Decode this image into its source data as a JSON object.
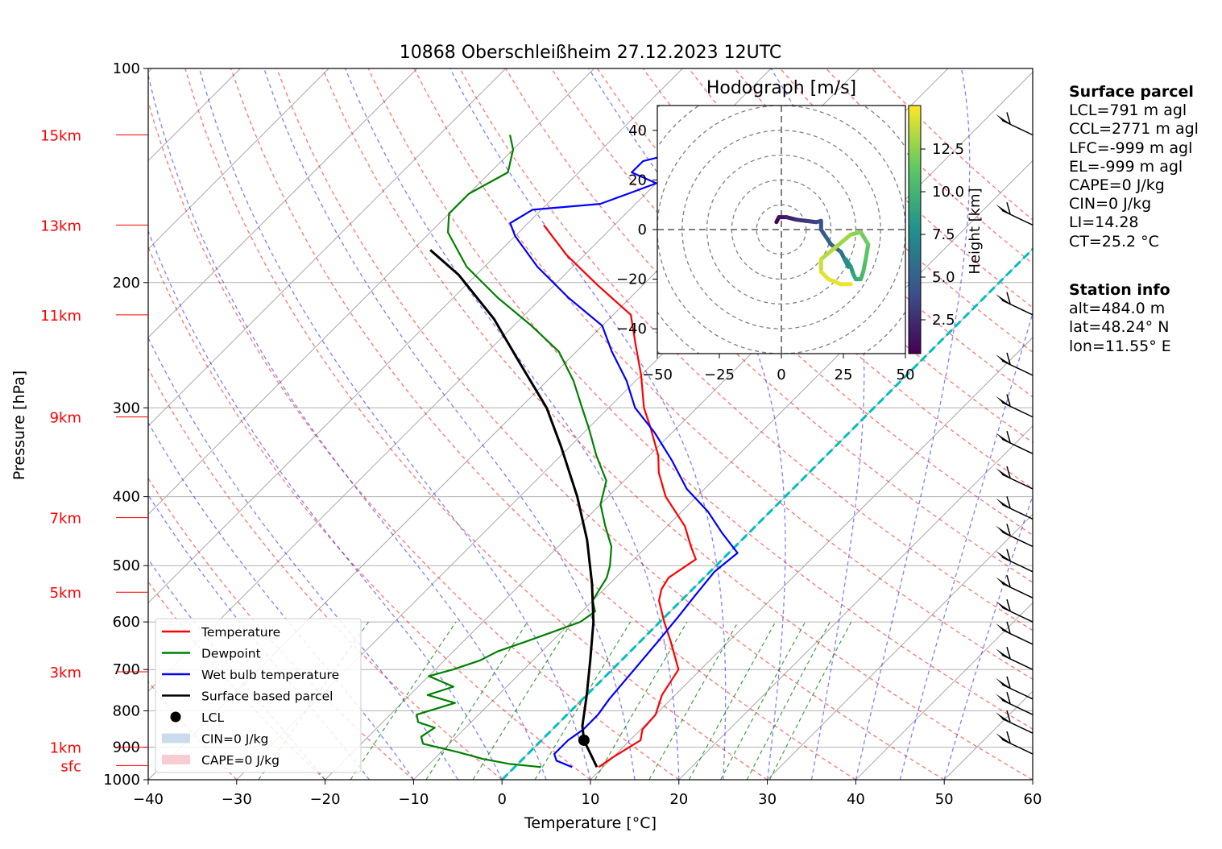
{
  "chart_data": {
    "type": "skew-t",
    "title": "10868 Oberschleißheim 27.12.2023 12UTC",
    "xlabel": "Temperature [°C]",
    "ylabel": "Pressure [hPa]",
    "xlim": [
      -40,
      60
    ],
    "ylim": [
      1000,
      100
    ],
    "grid": true,
    "x_ticks": [
      "−40",
      "−30",
      "−20",
      "−10",
      "0",
      "10",
      "20",
      "30",
      "40",
      "50",
      "60"
    ],
    "p_ticks": [
      "100",
      "200",
      "300",
      "400",
      "500",
      "600",
      "700",
      "800",
      "900",
      "1000"
    ],
    "height_labels": [
      {
        "label": "15km",
        "p": 124
      },
      {
        "label": "13km",
        "p": 166
      },
      {
        "label": "11km",
        "p": 222
      },
      {
        "label": "9km",
        "p": 309
      },
      {
        "label": "7km",
        "p": 428
      },
      {
        "label": "5km",
        "p": 545
      },
      {
        "label": "3km",
        "p": 705
      },
      {
        "label": "1km",
        "p": 900
      },
      {
        "label": "sfc",
        "p": 955
      }
    ],
    "series": [
      {
        "name": "Temperature",
        "color": "#ff0000",
        "points": [
          [
            9.5,
            960
          ],
          [
            10,
            930
          ],
          [
            11.2,
            880
          ],
          [
            10.2,
            850
          ],
          [
            10,
            810
          ],
          [
            8.5,
            760
          ],
          [
            7.5,
            700
          ],
          [
            3.5,
            640
          ],
          [
            0.5,
            600
          ],
          [
            -2.5,
            560
          ],
          [
            -3.5,
            540
          ],
          [
            -4,
            520
          ],
          [
            -3,
            490
          ],
          [
            -5,
            470
          ],
          [
            -8,
            440
          ],
          [
            -13.5,
            400
          ],
          [
            -17,
            370
          ],
          [
            -19,
            350
          ],
          [
            -23,
            320
          ],
          [
            -26,
            300
          ],
          [
            -30,
            270
          ],
          [
            -34,
            245
          ],
          [
            -38,
            222
          ],
          [
            -45,
            202
          ],
          [
            -52,
            183
          ],
          [
            -58,
            166
          ]
        ]
      },
      {
        "name": "Dewpoint",
        "color": "#008000",
        "points": [
          [
            3,
            960
          ],
          [
            -1,
            950
          ],
          [
            -4.5,
            935
          ],
          [
            -8,
            915
          ],
          [
            -13,
            890
          ],
          [
            -14,
            870
          ],
          [
            -13.5,
            845
          ],
          [
            -16,
            830
          ],
          [
            -17,
            810
          ],
          [
            -14,
            780
          ],
          [
            -18,
            760
          ],
          [
            -16,
            740
          ],
          [
            -20,
            715
          ],
          [
            -18,
            700
          ],
          [
            -16,
            680
          ],
          [
            -15,
            660
          ],
          [
            -13,
            640
          ],
          [
            -11,
            620
          ],
          [
            -9,
            600
          ],
          [
            -8.5,
            580
          ],
          [
            -10,
            560
          ],
          [
            -10.5,
            540
          ],
          [
            -11,
            520
          ],
          [
            -12,
            500
          ],
          [
            -14,
            470
          ],
          [
            -17,
            440
          ],
          [
            -20,
            410
          ],
          [
            -22,
            380
          ],
          [
            -26,
            350
          ],
          [
            -30,
            320
          ],
          [
            -33,
            300
          ],
          [
            -37,
            275
          ],
          [
            -42,
            250
          ],
          [
            -48,
            230
          ],
          [
            -55,
            210
          ],
          [
            -62,
            190
          ],
          [
            -68,
            170
          ],
          [
            -70,
            160
          ],
          [
            -70,
            150
          ],
          [
            -68,
            140
          ],
          [
            -70,
            130
          ],
          [
            -72,
            124
          ]
        ]
      },
      {
        "name": "Wet bulb temperature",
        "color": "#0000ff",
        "points": [
          [
            6.5,
            960
          ],
          [
            4,
            940
          ],
          [
            3,
            920
          ],
          [
            3,
            880
          ],
          [
            3.5,
            850
          ],
          [
            3.5,
            810
          ],
          [
            3,
            770
          ],
          [
            2.5,
            700
          ],
          [
            2,
            640
          ],
          [
            1.5,
            590
          ],
          [
            1,
            550
          ],
          [
            0.5,
            510
          ],
          [
            1,
            480
          ],
          [
            -3,
            450
          ],
          [
            -7,
            420
          ],
          [
            -12,
            390
          ],
          [
            -17,
            355
          ],
          [
            -22,
            325
          ],
          [
            -27,
            300
          ],
          [
            -31,
            275
          ],
          [
            -36,
            250
          ],
          [
            -40,
            230
          ],
          [
            -47,
            210
          ],
          [
            -54,
            190
          ],
          [
            -60,
            172
          ],
          [
            -62,
            165
          ],
          [
            -61,
            158
          ],
          [
            -54,
            155
          ],
          [
            -52,
            150
          ],
          [
            -50,
            145
          ],
          [
            -54,
            140
          ],
          [
            -54,
            135
          ],
          [
            -50,
            130
          ],
          [
            -44,
            124
          ]
        ]
      },
      {
        "name": "Surface based parcel",
        "color": "#000000",
        "points": [
          [
            9.3,
            960
          ],
          [
            4.8,
            880
          ],
          [
            3,
            840
          ],
          [
            0,
            760
          ],
          [
            -3.5,
            680
          ],
          [
            -7.5,
            600
          ],
          [
            -12,
            530
          ],
          [
            -17.5,
            460
          ],
          [
            -23.5,
            400
          ],
          [
            -31,
            340
          ],
          [
            -37,
            300
          ],
          [
            -45,
            260
          ],
          [
            -53,
            225
          ],
          [
            -62,
            195
          ],
          [
            -68,
            180
          ]
        ]
      }
    ],
    "lcl": {
      "label": "LCL",
      "t": 4.8,
      "p": 880
    },
    "legend": [
      "Temperature",
      "Dewpoint",
      "Wet bulb temperature",
      "Surface based parcel",
      "LCL",
      "CIN=0 J/kg",
      "CAPE=0 J/kg"
    ],
    "legend_position": "lower-left",
    "wind_barbs_right_side": true,
    "hodograph": {
      "title": "Hodograph [m/s]",
      "xlim": [
        -50,
        50
      ],
      "ylim": [
        -50,
        50
      ],
      "ticks": [
        "−50",
        "−25",
        "0",
        "25",
        "50"
      ],
      "yticks": [
        "40",
        "20",
        "0",
        "−20",
        "−40"
      ],
      "rings": [
        10,
        20,
        30,
        40,
        50,
        60,
        70
      ],
      "colorbar_label": "Height [km]",
      "colorbar_ticks": [
        "2.5",
        "5.0",
        "7.5",
        "10.0",
        "12.5"
      ],
      "colormap": "viridis",
      "track": [
        [
          -2,
          3,
          0.3
        ],
        [
          -1,
          5,
          0.8
        ],
        [
          2,
          5,
          1.5
        ],
        [
          6,
          4,
          2.2
        ],
        [
          10,
          3.5,
          2.8
        ],
        [
          14,
          3,
          3.4
        ],
        [
          16,
          3.5,
          3.8
        ],
        [
          16,
          0,
          4.3
        ],
        [
          18,
          -3,
          4.8
        ],
        [
          20,
          -6,
          5.3
        ],
        [
          24,
          -9,
          5.9
        ],
        [
          26,
          -13,
          6.6
        ],
        [
          27,
          -15,
          7.2
        ],
        [
          26,
          -12,
          7.8
        ],
        [
          28,
          -15,
          8.4
        ],
        [
          29,
          -18,
          9.0
        ],
        [
          30,
          -20,
          9.6
        ],
        [
          32,
          -20,
          10.2
        ],
        [
          33,
          -17,
          10.8
        ],
        [
          34,
          -12,
          11.4
        ],
        [
          35,
          -6,
          12.0
        ],
        [
          32,
          -1,
          12.6
        ],
        [
          28,
          -2,
          13.2
        ],
        [
          22,
          -7,
          13.8
        ],
        [
          16,
          -12,
          14.3
        ],
        [
          16,
          -17,
          14.8
        ],
        [
          19,
          -20,
          15.0
        ],
        [
          24,
          -22,
          15.1
        ],
        [
          28,
          -22,
          15.2
        ]
      ]
    }
  },
  "info": {
    "surface_header": "Surface parcel",
    "surface_lines": [
      "LCL=791 m agl",
      "CCL=2771 m agl",
      "LFC=-999 m agl",
      "EL=-999 m agl",
      "CAPE=0 J/kg",
      "CIN=0 J/kg",
      "LI=14.28",
      "CT=25.2 °C"
    ],
    "station_header": "Station info",
    "station_lines": [
      "alt=484.0 m",
      "lat=48.24° N",
      "lon=11.55° E"
    ]
  }
}
